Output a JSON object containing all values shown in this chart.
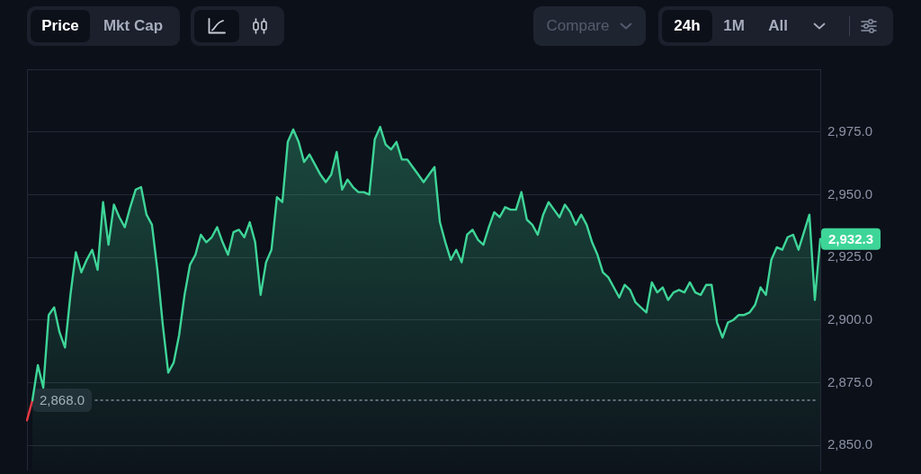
{
  "chart_data": {
    "type": "area",
    "categories": [
      null,
      null,
      null,
      null,
      null,
      null,
      null,
      null,
      null,
      null,
      null,
      null,
      null,
      null,
      null,
      null,
      null,
      null,
      null,
      null,
      null,
      null,
      null,
      null,
      null,
      null,
      null,
      null,
      null,
      null,
      null,
      null,
      null,
      null,
      null,
      null,
      null,
      null,
      null,
      null,
      null,
      null,
      null,
      null,
      null,
      null,
      null,
      null,
      null,
      null,
      null,
      null,
      null,
      null,
      null,
      null,
      null,
      null,
      null,
      null,
      null,
      null,
      null,
      null,
      null,
      null,
      null,
      null,
      null,
      null,
      null,
      null,
      null,
      null,
      null,
      null,
      null,
      null,
      null,
      null,
      null,
      null,
      null,
      null,
      null,
      null,
      null,
      null,
      null,
      null,
      null,
      null,
      null,
      null,
      null,
      null,
      null,
      null,
      null,
      null,
      null,
      null,
      null,
      null,
      null,
      null,
      null,
      null,
      null,
      null,
      null,
      null,
      null,
      null,
      null,
      null,
      null,
      null,
      null,
      null,
      null,
      null,
      null,
      null,
      null,
      null,
      null,
      null,
      null,
      null,
      null,
      null,
      null,
      null,
      null,
      null,
      null,
      null,
      null,
      null,
      null,
      null,
      null,
      null,
      null,
      null,
      null
    ],
    "series": [
      {
        "color": "#3ed598",
        "values": [
          null,
          2868,
          2882,
          2873,
          2902,
          2905,
          2895,
          2889,
          2910,
          2927,
          2919,
          2924,
          2928,
          2920,
          2947,
          2930,
          2946,
          2941,
          2937,
          2945,
          2952,
          2953,
          2942,
          2938,
          2920,
          2898,
          2879,
          2883,
          2894,
          2910,
          2922,
          2926,
          2934,
          2931,
          2933,
          2937,
          2931,
          2926,
          2935,
          2936,
          2933,
          2939,
          2931,
          2910,
          2923,
          2928,
          2949,
          2947,
          2971,
          2976,
          2971,
          2963,
          2966,
          2962,
          2958,
          2955,
          2958,
          2967,
          2952,
          2956,
          2953,
          2951,
          2951,
          2950,
          2972,
          2977,
          2970,
          2968,
          2971,
          2964,
          2964,
          2961,
          2958,
          2955,
          2958,
          2961,
          2939,
          2931,
          2924,
          2928,
          2923,
          2934,
          2936,
          2932,
          2930,
          2937,
          2943,
          2941,
          2945,
          2944,
          2944,
          2951,
          2940,
          2938,
          2934,
          2942,
          2947,
          2944,
          2941,
          2946,
          2943,
          2938,
          2942,
          2938,
          2931,
          2926,
          2919,
          2917,
          2913,
          2909,
          2914,
          2912,
          2907,
          2905,
          2903,
          2915,
          2911,
          2913,
          2908,
          2911,
          2912,
          2911,
          2915,
          2911,
          2910,
          2914,
          2914,
          2899,
          2893,
          2899,
          2900,
          2902,
          2902,
          2903,
          2906,
          2913,
          2910,
          2924,
          2929,
          2928,
          2933,
          2934,
          2928,
          2935,
          2942,
          2908,
          2932.3
        ]
      },
      {
        "type": "line",
        "color": "#ea3943",
        "values": [
          2860,
          2868,
          null,
          null,
          null,
          null,
          null,
          null,
          null,
          null,
          null,
          null,
          null,
          null,
          null,
          null,
          null,
          null,
          null,
          null,
          null,
          null,
          null,
          null,
          null,
          null,
          null,
          null,
          null,
          null,
          null,
          null,
          null,
          null,
          null,
          null,
          null,
          null,
          null,
          null,
          null,
          null,
          null,
          null,
          null,
          null,
          null,
          null,
          null,
          null,
          null,
          null,
          null,
          null,
          null,
          null,
          null,
          null,
          null,
          null,
          null,
          null,
          null,
          null,
          null,
          null,
          null,
          null,
          null,
          null,
          null,
          null,
          null,
          null,
          null,
          null,
          null,
          null,
          null,
          null,
          null,
          null,
          null,
          null,
          null,
          null,
          null,
          null,
          null,
          null,
          null,
          null,
          null,
          null,
          null,
          null,
          null,
          null,
          null,
          null,
          null,
          null,
          null,
          null,
          null,
          null,
          null,
          null,
          null,
          null,
          null,
          null,
          null,
          null,
          null,
          null,
          null,
          null,
          null,
          null,
          null,
          null,
          null,
          null,
          null,
          null,
          null,
          null,
          null,
          null,
          null,
          null,
          null,
          null,
          null,
          null,
          null,
          null,
          null,
          null,
          null,
          null,
          null,
          null,
          null,
          null,
          null
        ]
      }
    ],
    "ylim": [
      2840,
      3000
    ],
    "yticks": [
      {
        "value": 2850,
        "label": "2,850.0"
      },
      {
        "value": 2875,
        "label": "2,875.0"
      },
      {
        "value": 2900,
        "label": "2,900.0"
      },
      {
        "value": 2925,
        "label": "2,925.0"
      },
      {
        "value": 2950,
        "label": "2,950.0"
      },
      {
        "value": 2975,
        "label": "2,975.0"
      }
    ],
    "grid": "y",
    "tick_labels": "y",
    "marker": "none",
    "ref_lines": [
      {
        "axis": "y",
        "value": 2868,
        "label": "2,868.0",
        "color": "#7d8394",
        "line_style": "dotted"
      }
    ],
    "annotations": [
      "Price",
      "Mkt Cap",
      "Compare",
      "24h",
      "1M",
      "All",
      "2,932.3"
    ]
  }
}
